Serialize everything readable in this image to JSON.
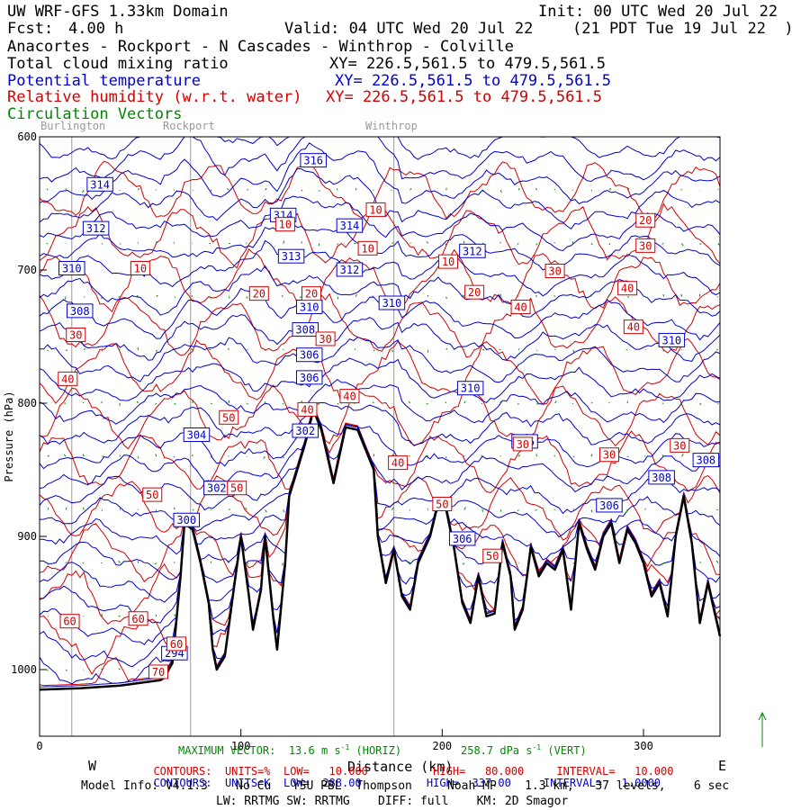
{
  "header": {
    "domain": "UW WRF-GFS 1.33km Domain",
    "init": "Init: 00 UTC Wed 20 Jul 22",
    "fcst_label": "Fcst:",
    "fcst_value": "4.00 h",
    "valid": "Valid: 04 UTC Wed 20 Jul 22",
    "valid_local": "(21 PDT Tue 19 Jul 22  )",
    "route": "Anacortes - Rockport - N Cascades - Winthrop - Colville",
    "fields": [
      {
        "name": "Total cloud mixing ratio",
        "xy": "XY= 226.5,561.5 to 479.5,561.5",
        "color": "#000000"
      },
      {
        "name": "Potential temperature",
        "xy": "XY= 226.5,561.5 to 479.5,561.5",
        "color": "#0000cc"
      },
      {
        "name": "Relative humidity (w.r.t. water)",
        "xy": "XY= 226.5,561.5 to 479.5,561.5",
        "color": "#d00000"
      },
      {
        "name": "Circulation Vectors",
        "xy": "",
        "color": "#008800"
      }
    ]
  },
  "place_labels": [
    "Burlington",
    "Rockport",
    "Winthrop"
  ],
  "footer": {
    "max_vector": "MAXIMUM VECTOR:  13.6 m s",
    "horiz": "(HORIZ)",
    "vert_value": "258.7 dPa s",
    "vert": "(VERT)",
    "west": "W",
    "east": "E",
    "xaxis_label": "Distance (km)",
    "rh_contours": {
      "label": "CONTOURS:",
      "units": "UNITS=%",
      "low": "LOW=   10.000",
      "high": "HIGH=   80.000",
      "interval": "INTERVAL=   10.000"
    },
    "th_contours": {
      "label": "CONTOURS:",
      "units": "UNITS=K",
      "low": "LOW=  288.00",
      "high": "HIGH=  337.00",
      "interval": "INTERVAL=   1.0000"
    },
    "model_info": "Model Info: V4.1.3    No Cu   YSU PBL  Thompson     Noah-MP    1.3 km,   37 levels,    6 sec",
    "model_info2": "LW: RRTMG SW: RRTMG    DIFF: full    KM: 2D Smagor"
  },
  "chart_data": {
    "type": "line",
    "title": "",
    "xlabel": "Distance (km)",
    "ylabel": "Pressure (hPa)",
    "xlim": [
      0,
      338
    ],
    "ylim": [
      1050,
      600
    ],
    "x_ticks": [
      0,
      100,
      200,
      300
    ],
    "x_tick_labels": [
      "0",
      "100",
      "200",
      "300"
    ],
    "y_ticks": [
      600,
      700,
      800,
      900,
      1000
    ],
    "y_tick_labels": [
      "600",
      "700",
      "800",
      "900",
      "1000"
    ],
    "place_markers_km": [
      {
        "name": "Burlington",
        "x": 16
      },
      {
        "name": "Rockport",
        "x": 75
      },
      {
        "name": "Winthrop",
        "x": 176
      }
    ],
    "terrain": {
      "name": "surface",
      "x": [
        0,
        20,
        40,
        50,
        60,
        62,
        66,
        70,
        72,
        76,
        80,
        84,
        86,
        88,
        92,
        96,
        100,
        104,
        106,
        110,
        112,
        116,
        118,
        122,
        124,
        128,
        132,
        136,
        140,
        146,
        152,
        158,
        162,
        166,
        168,
        172,
        176,
        180,
        184,
        188,
        194,
        198,
        202,
        206,
        210,
        214,
        218,
        222,
        226,
        230,
        234,
        236,
        240,
        244,
        248,
        252,
        256,
        260,
        264,
        268,
        272,
        276,
        280,
        284,
        288,
        292,
        296,
        300,
        304,
        308,
        312,
        316,
        320,
        324,
        328,
        332,
        338
      ],
      "y": [
        1015,
        1014,
        1012,
        1010,
        1008,
        1006,
        995,
        930,
        890,
        895,
        920,
        950,
        985,
        1000,
        990,
        945,
        900,
        945,
        970,
        940,
        900,
        960,
        985,
        920,
        870,
        850,
        830,
        805,
        820,
        860,
        818,
        820,
        835,
        850,
        900,
        935,
        910,
        945,
        955,
        920,
        900,
        875,
        880,
        910,
        950,
        965,
        930,
        960,
        958,
        905,
        930,
        970,
        955,
        908,
        930,
        920,
        925,
        910,
        955,
        890,
        910,
        925,
        900,
        890,
        920,
        895,
        905,
        920,
        945,
        935,
        960,
        900,
        870,
        905,
        965,
        935,
        975
      ]
    },
    "theta_labels": [
      {
        "value": "314",
        "x": 30,
        "y": 636
      },
      {
        "value": "312",
        "x": 28,
        "y": 669
      },
      {
        "value": "310",
        "x": 16,
        "y": 699
      },
      {
        "value": "308",
        "x": 20,
        "y": 731
      },
      {
        "value": "316",
        "x": 136,
        "y": 618
      },
      {
        "value": "314",
        "x": 121,
        "y": 659
      },
      {
        "value": "314",
        "x": 154,
        "y": 667
      },
      {
        "value": "313",
        "x": 125,
        "y": 690
      },
      {
        "value": "312",
        "x": 154,
        "y": 700
      },
      {
        "value": "312",
        "x": 215,
        "y": 686
      },
      {
        "value": "310",
        "x": 134,
        "y": 728
      },
      {
        "value": "310",
        "x": 175,
        "y": 725
      },
      {
        "value": "308",
        "x": 132,
        "y": 745
      },
      {
        "value": "306",
        "x": 134,
        "y": 764
      },
      {
        "value": "306",
        "x": 134,
        "y": 781
      },
      {
        "value": "310",
        "x": 214,
        "y": 789
      },
      {
        "value": "310",
        "x": 314,
        "y": 753
      },
      {
        "value": "304",
        "x": 78,
        "y": 824
      },
      {
        "value": "302",
        "x": 88,
        "y": 864
      },
      {
        "value": "300",
        "x": 73,
        "y": 888
      },
      {
        "value": "302",
        "x": 132,
        "y": 821
      },
      {
        "value": "306",
        "x": 241,
        "y": 829
      },
      {
        "value": "308",
        "x": 309,
        "y": 856
      },
      {
        "value": "308",
        "x": 331,
        "y": 843
      },
      {
        "value": "306",
        "x": 283,
        "y": 877
      },
      {
        "value": "306",
        "x": 210,
        "y": 902
      },
      {
        "value": "294",
        "x": 67,
        "y": 988
      }
    ],
    "rh_labels": [
      {
        "value": "10",
        "x": 50,
        "y": 699
      },
      {
        "value": "10",
        "x": 167,
        "y": 655
      },
      {
        "value": "10",
        "x": 163,
        "y": 684
      },
      {
        "value": "10",
        "x": 122,
        "y": 666
      },
      {
        "value": "10",
        "x": 203,
        "y": 694
      },
      {
        "value": "20",
        "x": 109,
        "y": 718
      },
      {
        "value": "20",
        "x": 135,
        "y": 718
      },
      {
        "value": "20",
        "x": 216,
        "y": 717
      },
      {
        "value": "20",
        "x": 301,
        "y": 663
      },
      {
        "value": "30",
        "x": 18,
        "y": 749
      },
      {
        "value": "30",
        "x": 142,
        "y": 752
      },
      {
        "value": "30",
        "x": 256,
        "y": 701
      },
      {
        "value": "30",
        "x": 301,
        "y": 682
      },
      {
        "value": "30",
        "x": 283,
        "y": 839
      },
      {
        "value": "30",
        "x": 318,
        "y": 832
      },
      {
        "value": "40",
        "x": 14,
        "y": 782
      },
      {
        "value": "40",
        "x": 239,
        "y": 728
      },
      {
        "value": "40",
        "x": 292,
        "y": 714
      },
      {
        "value": "40",
        "x": 295,
        "y": 743
      },
      {
        "value": "40",
        "x": 154,
        "y": 795
      },
      {
        "value": "40",
        "x": 178,
        "y": 845
      },
      {
        "value": "40",
        "x": 133,
        "y": 805
      },
      {
        "value": "50",
        "x": 94,
        "y": 811
      },
      {
        "value": "50",
        "x": 56,
        "y": 869
      },
      {
        "value": "50",
        "x": 98,
        "y": 864
      },
      {
        "value": "50",
        "x": 200,
        "y": 876
      },
      {
        "value": "50",
        "x": 225,
        "y": 915
      },
      {
        "value": "30",
        "x": 240,
        "y": 831
      },
      {
        "value": "60",
        "x": 15,
        "y": 964
      },
      {
        "value": "60",
        "x": 49,
        "y": 962
      },
      {
        "value": "60",
        "x": 68,
        "y": 981
      },
      {
        "value": "70",
        "x": 59,
        "y": 1002
      }
    ]
  }
}
